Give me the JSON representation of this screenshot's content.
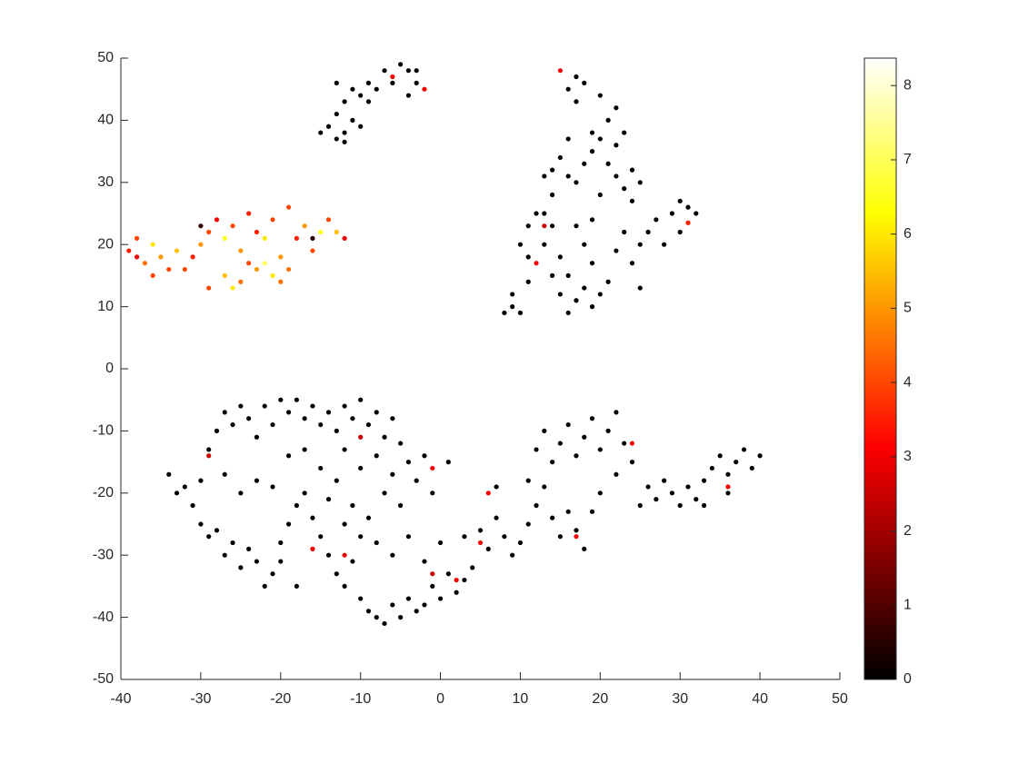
{
  "chart_data": {
    "type": "scatter",
    "colormap": "hot",
    "xlim": [
      -40,
      50
    ],
    "xticks": [
      -40,
      -30,
      -20,
      -10,
      0,
      10,
      20,
      30,
      40,
      50
    ],
    "ylim": [
      -50,
      50
    ],
    "yticks": [
      -50,
      -40,
      -30,
      -20,
      -10,
      0,
      10,
      20,
      30,
      40,
      50
    ],
    "clim": [
      0,
      8.37
    ],
    "cticks": [
      0,
      1,
      2,
      3,
      4,
      5,
      6,
      7,
      8
    ],
    "series": [
      {
        "x": [
          -15,
          -14,
          -13,
          -12,
          -11,
          -13,
          -12,
          -11,
          -13,
          -10,
          -9,
          -8,
          -7,
          -6,
          -5,
          -4,
          -3,
          -4,
          -2,
          -6,
          -3,
          -12,
          -10,
          -9
        ],
        "values": [
          38,
          39,
          37,
          38,
          40,
          41,
          43,
          45,
          46,
          44,
          46,
          45,
          48,
          47,
          49,
          48,
          46,
          44,
          45,
          46,
          48,
          36.5,
          39,
          43
        ],
        "c": [
          0,
          0,
          0,
          0,
          0,
          0,
          0,
          0,
          0,
          0,
          0,
          0,
          0,
          3,
          0,
          0,
          0,
          0,
          3,
          0,
          0,
          0,
          0,
          0
        ]
      },
      {
        "x": [
          -39,
          -38,
          -37,
          -36,
          -35,
          -34,
          -33,
          -32,
          -31,
          -30,
          -29,
          -28,
          -27,
          -26,
          -25,
          -27,
          -26,
          -25,
          -24,
          -23,
          -22,
          -21,
          -20,
          -19,
          -18,
          -17,
          -16,
          -15,
          -14,
          -13,
          -12,
          -21,
          -20,
          -23,
          -29,
          -24,
          -19,
          -38,
          -36,
          -16,
          -30,
          -22
        ],
        "values": [
          19,
          21,
          17,
          20,
          18,
          16,
          19,
          16,
          18,
          20,
          22,
          24,
          21,
          23,
          19,
          15,
          13,
          14,
          17,
          22,
          21,
          24,
          18,
          16,
          21,
          23,
          19,
          22,
          24,
          22,
          21,
          15,
          14,
          16,
          13,
          25,
          26,
          18,
          15,
          21,
          23,
          17
        ],
        "c": [
          3.5,
          4,
          4.5,
          6,
          5,
          4,
          5.5,
          4,
          3.5,
          5,
          4,
          3,
          6.5,
          4,
          5,
          5.5,
          6,
          4.5,
          4,
          3.5,
          6,
          4,
          5,
          4.5,
          3.5,
          5,
          4,
          6.5,
          4,
          5.5,
          3,
          6,
          4.5,
          5,
          4,
          3.5,
          4,
          3,
          4,
          0.5,
          0.5,
          7
        ]
      },
      {
        "x": [
          8,
          9,
          10,
          9,
          11,
          12,
          10,
          11,
          12,
          14,
          13,
          15,
          16,
          15,
          16,
          17,
          18,
          19,
          20,
          21,
          19,
          18,
          17,
          19,
          22,
          23,
          24,
          25,
          25,
          26,
          27,
          28,
          29,
          30,
          31,
          32,
          30,
          14,
          14,
          15,
          16,
          17,
          18,
          19,
          20,
          21,
          22,
          23,
          24,
          25,
          19,
          21,
          22,
          20,
          18,
          17,
          16,
          15,
          17,
          23,
          22,
          13,
          16,
          20,
          24,
          13,
          11,
          14,
          31,
          13
        ],
        "values": [
          9,
          10,
          9,
          12,
          14,
          17,
          20,
          23,
          25,
          23,
          20,
          18,
          15,
          12,
          9,
          11,
          13,
          10,
          12,
          14,
          17,
          20,
          23,
          24,
          19,
          22,
          17,
          13,
          20,
          22,
          24,
          20,
          25,
          27,
          26,
          25,
          22,
          28,
          32,
          34,
          31,
          30,
          33,
          35,
          37,
          33,
          31,
          29,
          27,
          30,
          38,
          40,
          42,
          44,
          46,
          47,
          45,
          48,
          43,
          38,
          36,
          31,
          37,
          28,
          32,
          25,
          18,
          15,
          23.5,
          23
        ],
        "c": [
          0,
          0,
          0,
          0,
          0,
          3,
          0,
          0,
          0,
          0,
          0,
          0,
          0,
          0,
          0,
          0,
          0,
          0,
          0,
          0,
          0,
          0,
          0,
          0,
          0,
          0,
          0,
          0,
          0,
          0,
          0,
          0,
          0,
          0,
          0,
          0,
          0,
          0,
          0,
          0,
          0,
          0,
          0,
          0,
          0,
          0,
          0,
          0,
          0,
          0,
          0,
          0,
          0,
          0,
          0,
          0,
          0,
          3,
          0,
          0,
          0,
          0,
          0,
          0,
          0,
          0,
          0,
          0,
          3.5,
          2.5
        ]
      },
      {
        "x": [
          -16,
          -12,
          -29,
          5,
          6,
          -1,
          17,
          36,
          -10,
          -1,
          24,
          2
        ],
        "values": [
          -29,
          -30,
          -14,
          -28,
          -20,
          -33,
          -27,
          -19,
          -11,
          -16,
          -12,
          -34
        ],
        "c": [
          3,
          3,
          2.5,
          3,
          3,
          2.5,
          3,
          3,
          2.5,
          3,
          3,
          3
        ]
      },
      {
        "x": [
          -34,
          -33,
          -32,
          -31,
          -30,
          -29,
          -28,
          -27,
          -26,
          -25,
          -24,
          -23,
          -22,
          -21,
          -20,
          -19,
          -18,
          -17,
          -16,
          -15,
          -14,
          -13,
          -12,
          -11,
          -10,
          -9,
          -8,
          -7,
          -6,
          -5,
          -30,
          -29,
          -28,
          -27,
          -26,
          -25,
          -24,
          -23,
          -22,
          -21,
          -20,
          -19,
          -18,
          -17,
          -16,
          -15,
          -14,
          -13,
          -12,
          -11,
          -10,
          -9,
          -8,
          -7,
          -6,
          -5,
          -4,
          -3,
          -2,
          -1,
          0,
          1,
          2,
          3,
          4,
          -27,
          -25,
          -23,
          -21,
          -19,
          -17,
          -15,
          -13,
          -11,
          -9,
          -7,
          -5,
          -3,
          -1,
          1,
          -2,
          -4,
          -6,
          -8,
          -10,
          -12,
          -14,
          -8,
          -6,
          -4,
          -2,
          0,
          -10,
          -12,
          -20,
          -18,
          3,
          5,
          6,
          7,
          8,
          9,
          10,
          11,
          12,
          13,
          14,
          15,
          16,
          17,
          18,
          12,
          13,
          14,
          15,
          16,
          17,
          18,
          19,
          20,
          21,
          22,
          23,
          24,
          22,
          20,
          19,
          25,
          26,
          27,
          28,
          29,
          30,
          31,
          32,
          33,
          34,
          35,
          36,
          37,
          38,
          39,
          40,
          33,
          36,
          7,
          11
        ],
        "values": [
          -17,
          -20,
          -19,
          -22,
          -18,
          -13,
          -10,
          -7,
          -9,
          -6,
          -8,
          -11,
          -6,
          -9,
          -5,
          -7,
          -5,
          -8,
          -6,
          -9,
          -7,
          -10,
          -6,
          -8,
          -5,
          -9,
          -7,
          -11,
          -8,
          -12,
          -25,
          -27,
          -26,
          -30,
          -28,
          -32,
          -29,
          -31,
          -35,
          -33,
          -28,
          -25,
          -22,
          -20,
          -24,
          -27,
          -30,
          -33,
          -35,
          -31,
          -37,
          -39,
          -40,
          -41,
          -38,
          -40,
          -37,
          -39,
          -38,
          -35,
          -37,
          -33,
          -36,
          -34,
          -32,
          -17,
          -20,
          -18,
          -19,
          -14,
          -13,
          -16,
          -18,
          -22,
          -24,
          -20,
          -22,
          -18,
          -20,
          -15,
          -14,
          -15,
          -17,
          -14,
          -16,
          -13,
          -21,
          -28,
          -30,
          -27,
          -31,
          -28,
          -27,
          -25,
          -31,
          -35,
          -27,
          -26,
          -29,
          -24,
          -27,
          -30,
          -28,
          -25,
          -22,
          -19,
          -24,
          -27,
          -23,
          -26,
          -29,
          -13,
          -10,
          -15,
          -12,
          -9,
          -14,
          -11,
          -8,
          -13,
          -10,
          -7,
          -12,
          -15,
          -17,
          -20,
          -23,
          -22,
          -19,
          -21,
          -18,
          -20,
          -22,
          -19,
          -21,
          -18,
          -16,
          -14,
          -17,
          -15,
          -13,
          -16,
          -14,
          -22,
          -20,
          -19,
          -18
        ],
        "c": [
          0,
          0,
          0,
          0,
          0,
          0,
          0,
          0,
          0,
          0,
          0,
          0,
          0,
          0,
          0,
          0,
          0,
          0,
          0,
          0,
          0,
          0,
          0,
          0,
          0,
          0,
          0,
          0,
          0,
          0,
          0,
          0,
          0,
          0,
          0,
          0,
          0,
          0,
          0,
          0,
          0,
          0,
          0,
          0,
          0,
          0,
          0,
          0,
          0,
          0,
          0,
          0,
          0,
          0,
          0,
          0,
          0,
          0,
          0,
          0,
          0,
          0,
          0,
          0,
          0,
          0,
          0,
          0,
          0,
          0,
          0,
          0,
          0,
          0,
          0,
          0,
          0,
          0,
          0,
          0,
          0,
          0,
          0,
          0,
          0,
          0,
          0,
          0,
          0,
          0,
          0,
          0,
          0,
          0,
          0,
          0,
          0,
          0,
          0,
          0,
          0,
          0,
          0,
          0,
          0,
          0,
          0,
          0,
          0,
          0,
          0,
          0,
          0,
          0,
          0,
          0,
          0,
          0,
          0,
          0,
          0,
          0,
          0,
          0,
          0,
          0,
          0,
          0,
          0,
          0,
          0,
          0,
          0,
          0,
          0,
          0,
          0,
          0,
          0,
          0,
          0,
          0,
          0,
          0,
          0,
          0,
          0
        ]
      }
    ]
  }
}
